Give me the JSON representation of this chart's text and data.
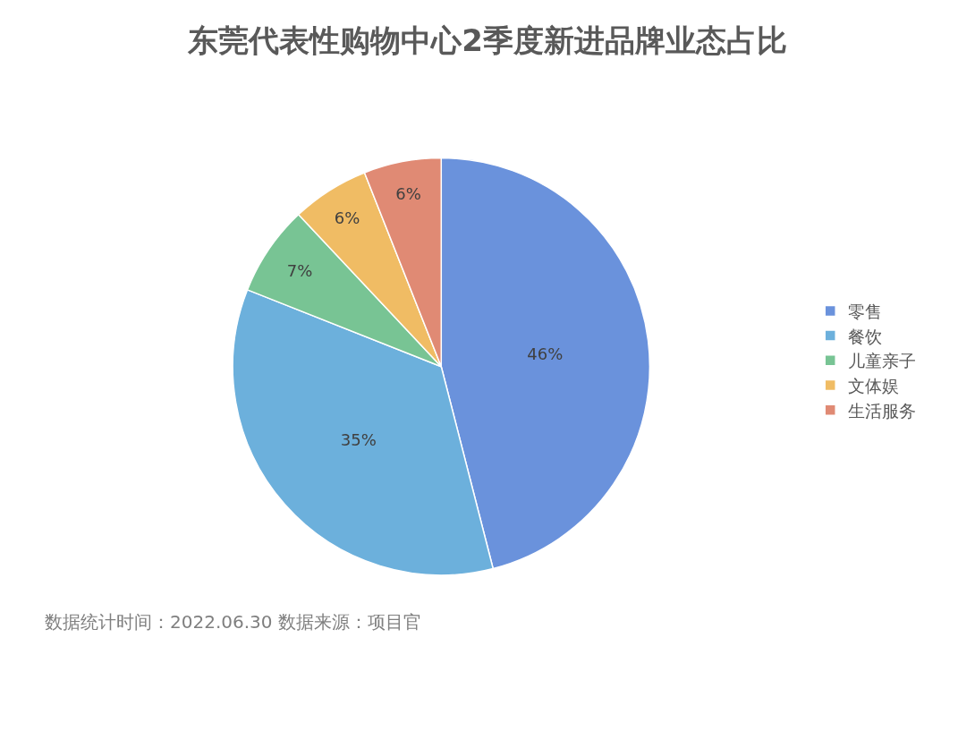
{
  "chart_data": {
    "type": "pie",
    "title": "东莞代表性购物中心2季度新进品牌业态占比",
    "categories": [
      "零售",
      "餐饮",
      "儿童亲子",
      "文体娱",
      "生活服务"
    ],
    "values": [
      46,
      35,
      7,
      6,
      6
    ],
    "colors": [
      "#6a92dc",
      "#6cb0dc",
      "#78c494",
      "#f0bc64",
      "#e08a74"
    ],
    "value_labels": [
      "46%",
      "35%",
      "7%",
      "6%",
      "6%"
    ],
    "legend": "right",
    "annotations": [
      "数据统计时间：2022.06.30 数据来源：项目官"
    ]
  }
}
